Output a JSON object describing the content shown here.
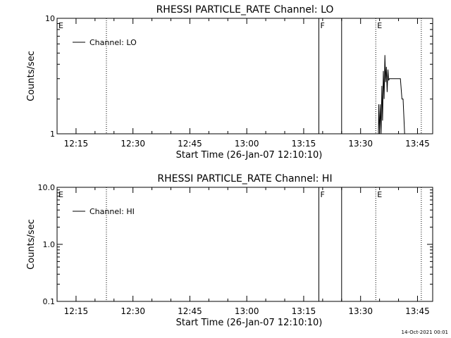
{
  "footer": {
    "timestamp": "14-Oct-2021 00:01"
  },
  "chart_data": [
    {
      "type": "line",
      "title": "RHESSI PARTICLE_RATE Channel: LO",
      "xlabel": "Start Time (26-Jan-07 12:10:10)",
      "ylabel": "Counts/sec",
      "yscale": "log",
      "ylim": [
        1,
        10
      ],
      "xlim": [
        "12:10",
        "13:49"
      ],
      "x_ticks": [
        "12:15",
        "12:30",
        "12:45",
        "13:00",
        "13:15",
        "13:30",
        "13:45"
      ],
      "y_ticks": [
        "1",
        "10"
      ],
      "grid": false,
      "legend": {
        "placement": "top-left",
        "entries": [
          "Channel: LO"
        ]
      },
      "markers": [
        {
          "time": "12:10",
          "label": "E",
          "style": "solid"
        },
        {
          "time": "12:23",
          "label": "",
          "style": "dotted"
        },
        {
          "time": "13:19",
          "label": "F",
          "style": "solid"
        },
        {
          "time": "13:25",
          "label": "",
          "style": "solid"
        },
        {
          "time": "13:34",
          "label": "E",
          "style": "dotted"
        },
        {
          "time": "13:46",
          "label": "",
          "style": "dotted"
        }
      ],
      "series": [
        {
          "name": "Channel: LO",
          "points": [
            [
              "13:34.7",
              1.0
            ],
            [
              "13:34.8",
              1.8
            ],
            [
              "13:35.0",
              1.0
            ],
            [
              "13:35.2",
              1.8
            ],
            [
              "13:35.4",
              1.0
            ],
            [
              "13:35.6",
              2.6
            ],
            [
              "13:35.8",
              1.3
            ],
            [
              "13:36.0",
              3.5
            ],
            [
              "13:36.2",
              2.0
            ],
            [
              "13:36.4",
              4.8
            ],
            [
              "13:36.6",
              2.8
            ],
            [
              "13:36.8",
              3.8
            ],
            [
              "13:37.0",
              2.3
            ],
            [
              "13:37.2",
              3.6
            ],
            [
              "13:37.4",
              2.9
            ],
            [
              "13:37.6",
              3.0
            ],
            [
              "13:38.2",
              3.0
            ],
            [
              "13:39.0",
              3.0
            ],
            [
              "13:39.8",
              3.0
            ],
            [
              "13:40.5",
              3.0
            ],
            [
              "13:40.9",
              2.0
            ],
            [
              "13:41.2",
              2.0
            ],
            [
              "13:41.6",
              1.0
            ]
          ]
        }
      ]
    },
    {
      "type": "line",
      "title": "RHESSI PARTICLE_RATE Channel: HI",
      "xlabel": "Start Time (26-Jan-07 12:10:10)",
      "ylabel": "Counts/sec",
      "yscale": "log",
      "ylim": [
        0.1,
        10.0
      ],
      "xlim": [
        "12:10",
        "13:49"
      ],
      "x_ticks": [
        "12:15",
        "12:30",
        "12:45",
        "13:00",
        "13:15",
        "13:30",
        "13:45"
      ],
      "y_ticks": [
        "0.1",
        "1.0",
        "10.0"
      ],
      "grid": false,
      "legend": {
        "placement": "top-left",
        "entries": [
          "Channel: HI"
        ]
      },
      "markers": [
        {
          "time": "12:10",
          "label": "E",
          "style": "solid"
        },
        {
          "time": "12:23",
          "label": "",
          "style": "dotted"
        },
        {
          "time": "13:19",
          "label": "F",
          "style": "solid"
        },
        {
          "time": "13:25",
          "label": "",
          "style": "solid"
        },
        {
          "time": "13:34",
          "label": "E",
          "style": "dotted"
        },
        {
          "time": "13:46",
          "label": "",
          "style": "dotted"
        }
      ],
      "series": [
        {
          "name": "Channel: HI",
          "points": []
        }
      ]
    }
  ]
}
